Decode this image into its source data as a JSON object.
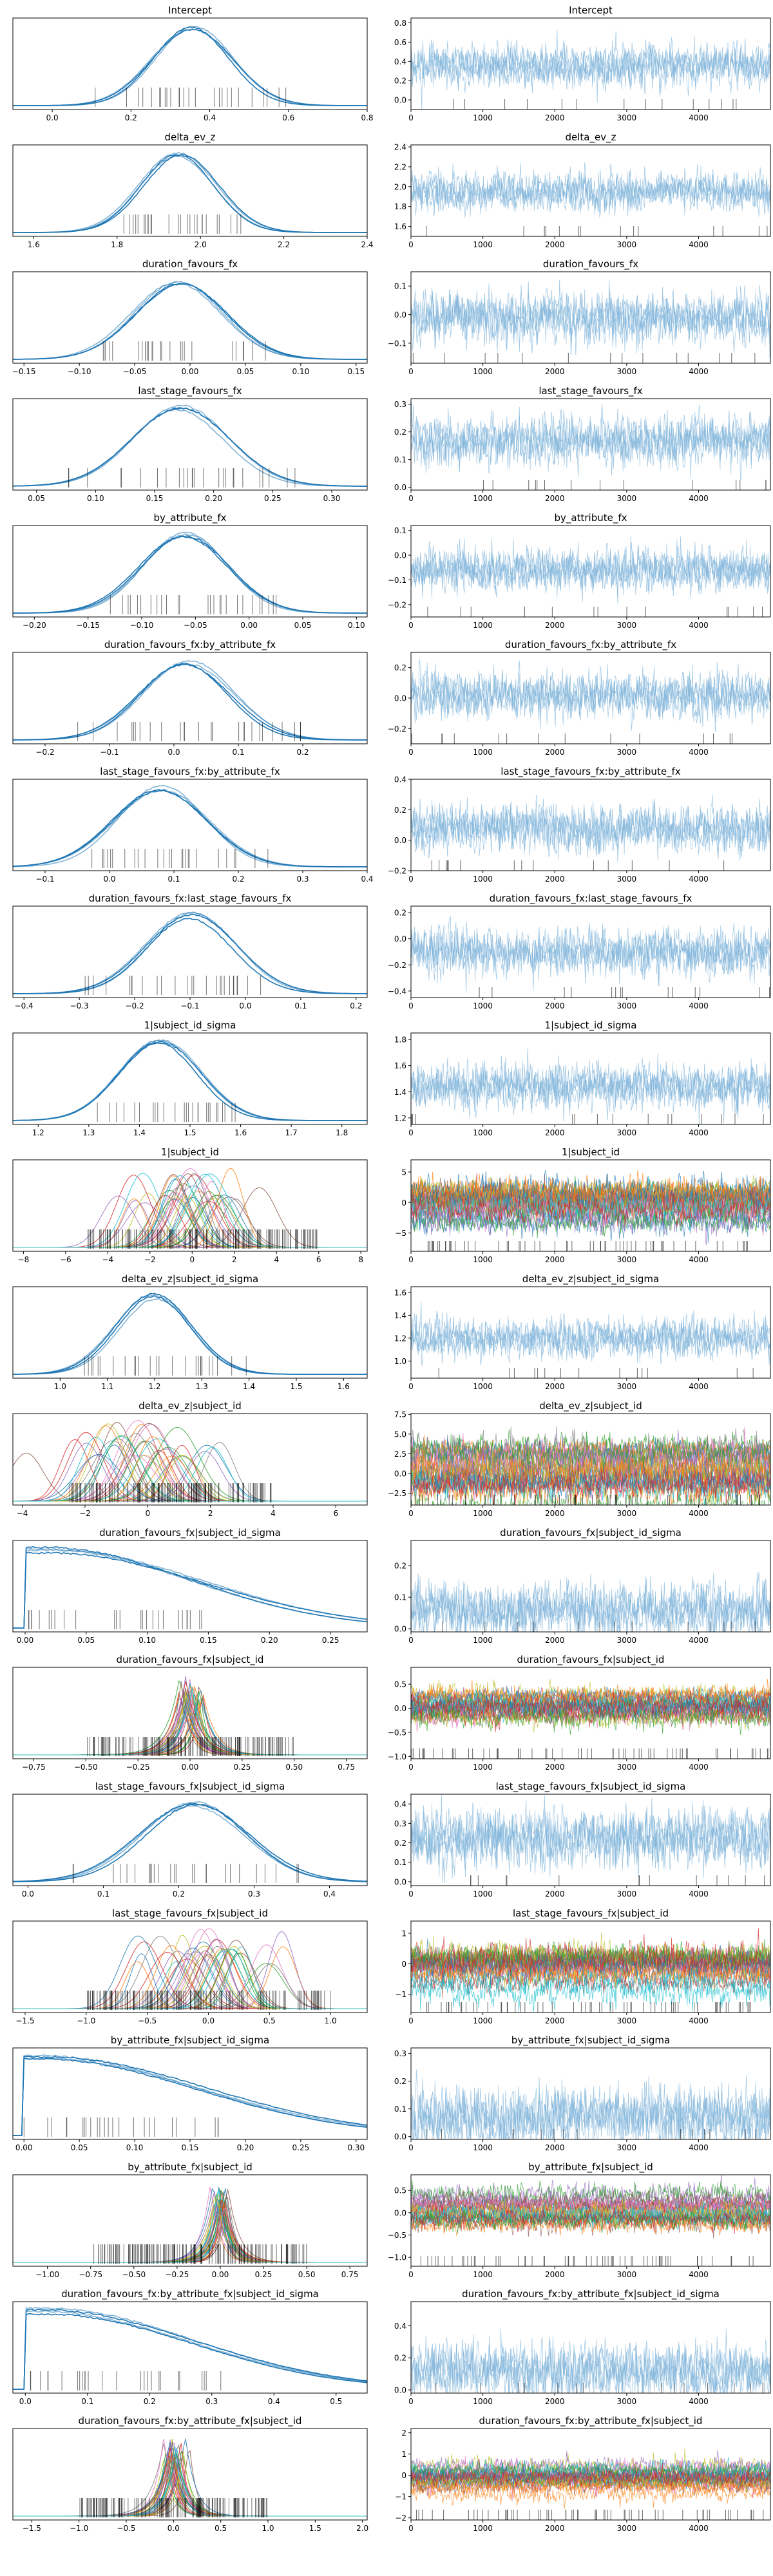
{
  "chart_data": [
    {
      "type": "line",
      "kind": "density",
      "title": "Intercept",
      "xlim": [
        -0.1,
        0.8
      ],
      "xticks": [
        0.0,
        0.2,
        0.4,
        0.6,
        0.8
      ],
      "mode": 0.36,
      "spread": 0.1,
      "rug_range": [
        0.1,
        0.6
      ],
      "multi": false
    },
    {
      "type": "line",
      "kind": "trace",
      "title": "Intercept",
      "xlim": [
        0,
        4999
      ],
      "xticks": [
        0,
        1000,
        2000,
        3000,
        4000
      ],
      "ylim": [
        -0.1,
        0.85
      ],
      "yticks": [
        0.0,
        0.2,
        0.4,
        0.6,
        0.8
      ],
      "mean": 0.36,
      "spread": 0.1,
      "multi": false
    },
    {
      "type": "line",
      "kind": "density",
      "title": "delta_ev_z",
      "xlim": [
        1.55,
        2.4
      ],
      "xticks": [
        1.6,
        1.8,
        2.0,
        2.2,
        2.4
      ],
      "mode": 1.95,
      "spread": 0.09,
      "rug_range": [
        1.8,
        2.1
      ],
      "multi": false
    },
    {
      "type": "line",
      "kind": "trace",
      "title": "delta_ev_z",
      "xlim": [
        0,
        4999
      ],
      "xticks": [
        0,
        1000,
        2000,
        3000,
        4000
      ],
      "ylim": [
        1.5,
        2.42
      ],
      "yticks": [
        1.6,
        1.8,
        2.0,
        2.2,
        2.4
      ],
      "mean": 1.95,
      "spread": 0.09,
      "multi": false
    },
    {
      "type": "line",
      "kind": "density",
      "title": "duration_favours_fx",
      "xlim": [
        -0.16,
        0.16
      ],
      "xticks": [
        -0.15,
        -0.1,
        -0.05,
        0.0,
        0.05,
        0.1,
        0.15
      ],
      "mode": -0.01,
      "spread": 0.04,
      "rug_range": [
        -0.08,
        0.07
      ],
      "multi": false
    },
    {
      "type": "line",
      "kind": "trace",
      "title": "duration_favours_fx",
      "xlim": [
        0,
        4999
      ],
      "xticks": [
        0,
        1000,
        2000,
        3000,
        4000
      ],
      "ylim": [
        -0.17,
        0.15
      ],
      "yticks": [
        -0.1,
        0.0,
        0.1
      ],
      "mean": -0.01,
      "spread": 0.04,
      "multi": false
    },
    {
      "type": "line",
      "kind": "density",
      "title": "last_stage_favours_fx",
      "xlim": [
        0.03,
        0.33
      ],
      "xticks": [
        0.05,
        0.1,
        0.15,
        0.2,
        0.25,
        0.3
      ],
      "mode": 0.17,
      "spread": 0.04,
      "rug_range": [
        0.07,
        0.27
      ],
      "multi": false
    },
    {
      "type": "line",
      "kind": "trace",
      "title": "last_stage_favours_fx",
      "xlim": [
        0,
        4999
      ],
      "xticks": [
        0,
        1000,
        2000,
        3000,
        4000
      ],
      "ylim": [
        -0.01,
        0.32
      ],
      "yticks": [
        0.0,
        0.1,
        0.2,
        0.3
      ],
      "mean": 0.17,
      "spread": 0.04,
      "multi": false
    },
    {
      "type": "line",
      "kind": "density",
      "title": "by_attribute_fx",
      "xlim": [
        -0.22,
        0.11
      ],
      "xticks": [
        -0.2,
        -0.15,
        -0.1,
        -0.05,
        0.0,
        0.05,
        0.1
      ],
      "mode": -0.06,
      "spread": 0.04,
      "rug_range": [
        -0.13,
        0.03
      ],
      "multi": false
    },
    {
      "type": "line",
      "kind": "trace",
      "title": "by_attribute_fx",
      "xlim": [
        0,
        4999
      ],
      "xticks": [
        0,
        1000,
        2000,
        3000,
        4000
      ],
      "ylim": [
        -0.25,
        0.12
      ],
      "yticks": [
        -0.2,
        -0.1,
        0.0,
        0.1
      ],
      "mean": -0.06,
      "spread": 0.04,
      "multi": false
    },
    {
      "type": "line",
      "kind": "density",
      "title": "duration_favours_fx:by_attribute_fx",
      "xlim": [
        -0.25,
        0.3
      ],
      "xticks": [
        -0.2,
        -0.1,
        0.0,
        0.1,
        0.2
      ],
      "mode": 0.02,
      "spread": 0.07,
      "rug_range": [
        -0.2,
        0.2
      ],
      "multi": false
    },
    {
      "type": "line",
      "kind": "trace",
      "title": "duration_favours_fx:by_attribute_fx",
      "xlim": [
        0,
        4999
      ],
      "xticks": [
        0,
        1000,
        2000,
        3000,
        4000
      ],
      "ylim": [
        -0.3,
        0.3
      ],
      "yticks": [
        -0.2,
        0.0,
        0.2
      ],
      "mean": 0.02,
      "spread": 0.07,
      "multi": false
    },
    {
      "type": "line",
      "kind": "density",
      "title": "last_stage_favours_fx:by_attribute_fx",
      "xlim": [
        -0.15,
        0.4
      ],
      "xticks": [
        -0.1,
        0.0,
        0.1,
        0.2,
        0.3,
        0.4
      ],
      "mode": 0.08,
      "spread": 0.07,
      "rug_range": [
        -0.05,
        0.25
      ],
      "multi": false
    },
    {
      "type": "line",
      "kind": "trace",
      "title": "last_stage_favours_fx:by_attribute_fx",
      "xlim": [
        0,
        4999
      ],
      "xticks": [
        0,
        1000,
        2000,
        3000,
        4000
      ],
      "ylim": [
        -0.2,
        0.4
      ],
      "yticks": [
        -0.2,
        0.0,
        0.2,
        0.4
      ],
      "mean": 0.08,
      "spread": 0.07,
      "multi": false
    },
    {
      "type": "line",
      "kind": "density",
      "title": "duration_favours_fx:last_stage_favours_fx",
      "xlim": [
        -0.42,
        0.22
      ],
      "xticks": [
        -0.4,
        -0.3,
        -0.2,
        -0.1,
        0.0,
        0.1,
        0.2
      ],
      "mode": -0.1,
      "spread": 0.08,
      "rug_range": [
        -0.3,
        0.05
      ],
      "multi": false
    },
    {
      "type": "line",
      "kind": "trace",
      "title": "duration_favours_fx:last_stage_favours_fx",
      "xlim": [
        0,
        4999
      ],
      "xticks": [
        0,
        1000,
        2000,
        3000,
        4000
      ],
      "ylim": [
        -0.45,
        0.25
      ],
      "yticks": [
        -0.4,
        -0.2,
        0.0,
        0.2
      ],
      "mean": -0.1,
      "spread": 0.08,
      "multi": false
    },
    {
      "type": "line",
      "kind": "density",
      "title": "1|subject_id_sigma",
      "xlim": [
        1.15,
        1.85
      ],
      "xticks": [
        1.2,
        1.3,
        1.4,
        1.5,
        1.6,
        1.7,
        1.8
      ],
      "mode": 1.44,
      "spread": 0.08,
      "rug_range": [
        1.3,
        1.6
      ],
      "multi": false
    },
    {
      "type": "line",
      "kind": "trace",
      "title": "1|subject_id_sigma",
      "xlim": [
        0,
        4999
      ],
      "xticks": [
        0,
        1000,
        2000,
        3000,
        4000
      ],
      "ylim": [
        1.15,
        1.85
      ],
      "yticks": [
        1.2,
        1.4,
        1.6,
        1.8
      ],
      "mean": 1.44,
      "spread": 0.08,
      "multi": false
    },
    {
      "type": "line",
      "kind": "density",
      "title": "1|subject_id",
      "xlim": [
        -8.5,
        8.3
      ],
      "xticks": [
        -8,
        -6,
        -4,
        -2,
        0,
        2,
        4,
        6,
        8
      ],
      "mode": 0.0,
      "spread": 1.6,
      "rug_range": [
        -5,
        6
      ],
      "multi": true
    },
    {
      "type": "line",
      "kind": "trace",
      "title": "1|subject_id",
      "xlim": [
        0,
        4999
      ],
      "xticks": [
        0,
        1000,
        2000,
        3000,
        4000
      ],
      "ylim": [
        -8,
        7
      ],
      "yticks": [
        -5,
        0,
        5
      ],
      "mean": 0.0,
      "spread": 1.6,
      "multi": true
    },
    {
      "type": "line",
      "kind": "density",
      "title": "delta_ev_z|subject_id_sigma",
      "xlim": [
        0.9,
        1.65
      ],
      "xticks": [
        1.0,
        1.1,
        1.2,
        1.3,
        1.4,
        1.5,
        1.6
      ],
      "mode": 1.2,
      "spread": 0.08,
      "rug_range": [
        1.05,
        1.4
      ],
      "multi": false
    },
    {
      "type": "line",
      "kind": "trace",
      "title": "delta_ev_z|subject_id_sigma",
      "xlim": [
        0,
        4999
      ],
      "xticks": [
        0,
        1000,
        2000,
        3000,
        4000
      ],
      "ylim": [
        0.85,
        1.65
      ],
      "yticks": [
        1.0,
        1.2,
        1.4,
        1.6
      ],
      "mean": 1.2,
      "spread": 0.08,
      "multi": false
    },
    {
      "type": "line",
      "kind": "density",
      "title": "delta_ev_z|subject_id",
      "xlim": [
        -4.3,
        7
      ],
      "xticks": [
        -4,
        -2,
        0,
        2,
        4,
        6
      ],
      "mode": 0.0,
      "spread": 1.2,
      "rug_range": [
        -2.5,
        4
      ],
      "multi": true
    },
    {
      "type": "line",
      "kind": "trace",
      "title": "delta_ev_z|subject_id",
      "xlim": [
        0,
        4999
      ],
      "xticks": [
        0,
        1000,
        2000,
        3000,
        4000
      ],
      "ylim": [
        -4,
        7.6
      ],
      "yticks": [
        -2.5,
        0.0,
        2.5,
        5.0,
        7.5
      ],
      "mean": 0.5,
      "spread": 1.5,
      "multi": true
    },
    {
      "type": "line",
      "kind": "density",
      "title": "duration_favours_fx|subject_id_sigma",
      "xlim": [
        -0.01,
        0.28
      ],
      "xticks": [
        0.0,
        0.05,
        0.1,
        0.15,
        0.2,
        0.25
      ],
      "mode": 0.02,
      "spread": 0.06,
      "rug_range": [
        0.0,
        0.15
      ],
      "multi": false,
      "half": true
    },
    {
      "type": "line",
      "kind": "trace",
      "title": "duration_favours_fx|subject_id_sigma",
      "xlim": [
        0,
        4999
      ],
      "xticks": [
        0,
        1000,
        2000,
        3000,
        4000
      ],
      "ylim": [
        -0.01,
        0.28
      ],
      "yticks": [
        0.0,
        0.1,
        0.2
      ],
      "mean": 0.06,
      "spread": 0.04,
      "multi": false
    },
    {
      "type": "line",
      "kind": "density",
      "title": "duration_favours_fx|subject_id",
      "xlim": [
        -0.85,
        0.85
      ],
      "xticks": [
        -0.75,
        -0.5,
        -0.25,
        0.0,
        0.25,
        0.5,
        0.75
      ],
      "mode": 0.0,
      "spread": 0.05,
      "rug_range": [
        -0.5,
        0.5
      ],
      "multi": true,
      "peaked": true
    },
    {
      "type": "line",
      "kind": "trace",
      "title": "duration_favours_fx|subject_id",
      "xlim": [
        0,
        4999
      ],
      "xticks": [
        0,
        1000,
        2000,
        3000,
        4000
      ],
      "ylim": [
        -1.05,
        0.85
      ],
      "yticks": [
        -1.0,
        -0.5,
        0.0,
        0.5
      ],
      "mean": 0.0,
      "spread": 0.15,
      "multi": true
    },
    {
      "type": "line",
      "kind": "density",
      "title": "last_stage_favours_fx|subject_id_sigma",
      "xlim": [
        -0.02,
        0.45
      ],
      "xticks": [
        0.0,
        0.1,
        0.2,
        0.3,
        0.4
      ],
      "mode": 0.22,
      "spread": 0.07,
      "rug_range": [
        0.05,
        0.38
      ],
      "multi": false
    },
    {
      "type": "line",
      "kind": "trace",
      "title": "last_stage_favours_fx|subject_id_sigma",
      "xlim": [
        0,
        4999
      ],
      "xticks": [
        0,
        1000,
        2000,
        3000,
        4000
      ],
      "ylim": [
        -0.02,
        0.45
      ],
      "yticks": [
        0.0,
        0.1,
        0.2,
        0.3,
        0.4
      ],
      "mean": 0.22,
      "spread": 0.07,
      "multi": false
    },
    {
      "type": "line",
      "kind": "density",
      "title": "last_stage_favours_fx|subject_id",
      "xlim": [
        -1.6,
        1.3
      ],
      "xticks": [
        -1.5,
        -1.0,
        -0.5,
        0.0,
        0.5,
        1.0
      ],
      "mode": 0.0,
      "spread": 0.25,
      "rug_range": [
        -1.0,
        1.0
      ],
      "multi": true
    },
    {
      "type": "line",
      "kind": "trace",
      "title": "last_stage_favours_fx|subject_id",
      "xlim": [
        0,
        4999
      ],
      "xticks": [
        0,
        1000,
        2000,
        3000,
        4000
      ],
      "ylim": [
        -1.6,
        1.4
      ],
      "yticks": [
        -1,
        0,
        1
      ],
      "mean": 0.0,
      "spread": 0.3,
      "multi": true
    },
    {
      "type": "line",
      "kind": "density",
      "title": "by_attribute_fx|subject_id_sigma",
      "xlim": [
        -0.01,
        0.31
      ],
      "xticks": [
        0.0,
        0.05,
        0.1,
        0.15,
        0.2,
        0.25,
        0.3
      ],
      "mode": 0.02,
      "spread": 0.07,
      "rug_range": [
        0.0,
        0.18
      ],
      "multi": false,
      "half": true
    },
    {
      "type": "line",
      "kind": "trace",
      "title": "by_attribute_fx|subject_id_sigma",
      "xlim": [
        0,
        4999
      ],
      "xticks": [
        0,
        1000,
        2000,
        3000,
        4000
      ],
      "ylim": [
        -0.01,
        0.32
      ],
      "yticks": [
        0.0,
        0.1,
        0.2,
        0.3
      ],
      "mean": 0.07,
      "spread": 0.05,
      "multi": false
    },
    {
      "type": "line",
      "kind": "density",
      "title": "by_attribute_fx|subject_id",
      "xlim": [
        -1.2,
        0.85
      ],
      "xticks": [
        -1.0,
        -0.75,
        -0.5,
        -0.25,
        0.0,
        0.25,
        0.5,
        0.75
      ],
      "mode": 0.0,
      "spread": 0.05,
      "rug_range": [
        -0.75,
        0.5
      ],
      "multi": true,
      "peaked": true
    },
    {
      "type": "line",
      "kind": "trace",
      "title": "by_attribute_fx|subject_id",
      "xlim": [
        0,
        4999
      ],
      "xticks": [
        0,
        1000,
        2000,
        3000,
        4000
      ],
      "ylim": [
        -1.2,
        0.85
      ],
      "yticks": [
        -1.0,
        -0.5,
        0.0,
        0.5
      ],
      "mean": 0.0,
      "spread": 0.15,
      "multi": true
    },
    {
      "type": "line",
      "kind": "density",
      "title": "duration_favours_fx:by_attribute_fx|subject_id_sigma",
      "xlim": [
        -0.02,
        0.55
      ],
      "xticks": [
        0.0,
        0.1,
        0.2,
        0.3,
        0.4,
        0.5
      ],
      "mode": 0.03,
      "spread": 0.12,
      "rug_range": [
        0.0,
        0.32
      ],
      "multi": false,
      "half": true
    },
    {
      "type": "line",
      "kind": "trace",
      "title": "duration_favours_fx:by_attribute_fx|subject_id_sigma",
      "xlim": [
        0,
        4999
      ],
      "xticks": [
        0,
        1000,
        2000,
        3000,
        4000
      ],
      "ylim": [
        -0.02,
        0.55
      ],
      "yticks": [
        0.0,
        0.2,
        0.4
      ],
      "mean": 0.12,
      "spread": 0.08,
      "multi": false
    },
    {
      "type": "line",
      "kind": "density",
      "title": "duration_favours_fx:by_attribute_fx|subject_id",
      "xlim": [
        -1.7,
        2.05
      ],
      "xticks": [
        -1.5,
        -1.0,
        -0.5,
        0.0,
        0.5,
        1.0,
        1.5,
        2.0
      ],
      "mode": 0.0,
      "spread": 0.1,
      "rug_range": [
        -1.0,
        1.0
      ],
      "multi": true,
      "peaked": true
    },
    {
      "type": "line",
      "kind": "trace",
      "title": "duration_favours_fx:by_attribute_fx|subject_id",
      "xlim": [
        0,
        4999
      ],
      "xticks": [
        0,
        1000,
        2000,
        3000,
        4000
      ],
      "ylim": [
        -2.1,
        2.2
      ],
      "yticks": [
        -2,
        -1,
        0,
        1,
        2
      ],
      "mean": 0.0,
      "spread": 0.3,
      "multi": true
    }
  ],
  "colors": {
    "main": "#1f77b4",
    "trace": "#7fb3da",
    "rug": "#000000",
    "palette": [
      "#1f77b4",
      "#ff7f0e",
      "#2ca02c",
      "#d62728",
      "#9467bd",
      "#8c564b",
      "#e377c2",
      "#7f7f7f",
      "#bcbd22",
      "#17becf"
    ]
  }
}
